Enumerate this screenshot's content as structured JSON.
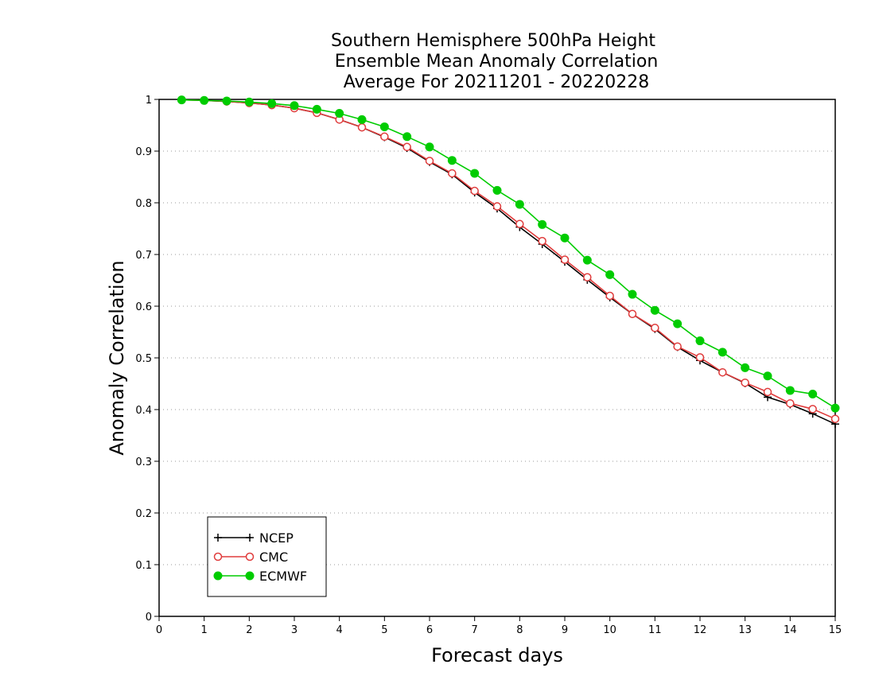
{
  "chart_data": {
    "type": "line",
    "title": [
      "Southern Hemisphere 500hPa Height",
      "Ensemble Mean Anomaly Correlation",
      "Average For 20211201 - 20220228"
    ],
    "xlabel": "Forecast days",
    "ylabel": "Anomaly Correlation",
    "xlim": [
      0,
      15
    ],
    "ylim": [
      0,
      1
    ],
    "xticks": [
      "0",
      "1",
      "2",
      "3",
      "4",
      "5",
      "6",
      "7",
      "8",
      "9",
      "10",
      "11",
      "12",
      "13",
      "14",
      "15"
    ],
    "yticks": [
      "0",
      "0.1",
      "0.2",
      "0.3",
      "0.4",
      "0.5",
      "0.6",
      "0.7",
      "0.8",
      "0.9",
      "1"
    ],
    "grid": true,
    "legend_position": "bottom-left",
    "x": [
      0.5,
      1,
      1.5,
      2,
      2.5,
      3,
      3.5,
      4,
      4.5,
      5,
      5.5,
      6,
      6.5,
      7,
      7.5,
      8,
      8.5,
      9,
      9.5,
      10,
      10.5,
      11,
      11.5,
      12,
      12.5,
      13,
      13.5,
      14,
      14.5,
      15
    ],
    "series": [
      {
        "name": "NCEP",
        "color": "#000000",
        "marker": "plus",
        "values": [
          0.999,
          0.998,
          0.996,
          0.993,
          0.989,
          0.983,
          0.974,
          0.961,
          0.946,
          0.927,
          0.906,
          0.879,
          0.855,
          0.82,
          0.789,
          0.753,
          0.72,
          0.686,
          0.651,
          0.617,
          0.585,
          0.556,
          0.521,
          0.495,
          0.472,
          0.451,
          0.424,
          0.41,
          0.392,
          0.372
        ]
      },
      {
        "name": "CMC",
        "color": "#e03c3c",
        "marker": "open-circle",
        "values": [
          0.999,
          0.998,
          0.996,
          0.993,
          0.989,
          0.983,
          0.974,
          0.961,
          0.946,
          0.928,
          0.908,
          0.881,
          0.857,
          0.823,
          0.793,
          0.759,
          0.726,
          0.69,
          0.656,
          0.62,
          0.585,
          0.558,
          0.522,
          0.501,
          0.472,
          0.452,
          0.434,
          0.412,
          0.401,
          0.382
        ]
      },
      {
        "name": "ECMWF",
        "color": "#00cc00",
        "marker": "filled-circle",
        "values": [
          0.999,
          0.998,
          0.997,
          0.995,
          0.992,
          0.988,
          0.981,
          0.973,
          0.961,
          0.947,
          0.928,
          0.908,
          0.882,
          0.857,
          0.824,
          0.797,
          0.758,
          0.732,
          0.689,
          0.661,
          0.623,
          0.592,
          0.566,
          0.533,
          0.511,
          0.481,
          0.465,
          0.437,
          0.43,
          0.403
        ]
      }
    ]
  }
}
